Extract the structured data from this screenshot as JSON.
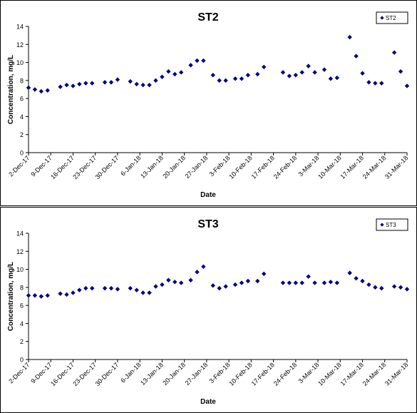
{
  "chart_data": [
    {
      "type": "scatter",
      "title": "ST2",
      "xlabel": "Date",
      "ylabel": "Concentration, mg/L",
      "ylim": [
        0,
        14
      ],
      "yticks": [
        0,
        2,
        4,
        6,
        8,
        10,
        12,
        14
      ],
      "xlim": [
        "2017-12-02",
        "2018-03-31"
      ],
      "xticks": [
        "2-Dec-17",
        "9-Dec-17",
        "16-Dec-17",
        "23-Dec-17",
        "30-Dec-17",
        "6-Jan-18",
        "13-Jan-18",
        "20-Jan-18",
        "27-Jan-18",
        "3-Feb-18",
        "10-Feb-18",
        "17-Feb-18",
        "24-Feb-18",
        "3-Mar-18",
        "10-Mar-18",
        "17-Mar-18",
        "24-Mar-18",
        "31-Mar-18"
      ],
      "legend_position": "top-right",
      "marker_color": "#000080",
      "series": [
        {
          "name": "ST2",
          "points": [
            [
              "2017-12-02",
              7.2
            ],
            [
              "2017-12-04",
              7.0
            ],
            [
              "2017-12-06",
              6.8
            ],
            [
              "2017-12-08",
              6.9
            ],
            [
              "2017-12-12",
              7.3
            ],
            [
              "2017-12-14",
              7.5
            ],
            [
              "2017-12-16",
              7.4
            ],
            [
              "2017-12-18",
              7.6
            ],
            [
              "2017-12-20",
              7.7
            ],
            [
              "2017-12-22",
              7.7
            ],
            [
              "2017-12-26",
              7.8
            ],
            [
              "2017-12-28",
              7.8
            ],
            [
              "2017-12-30",
              8.1
            ],
            [
              "2018-01-03",
              7.9
            ],
            [
              "2018-01-05",
              7.6
            ],
            [
              "2018-01-07",
              7.5
            ],
            [
              "2018-01-09",
              7.5
            ],
            [
              "2018-01-11",
              8.0
            ],
            [
              "2018-01-13",
              8.4
            ],
            [
              "2018-01-15",
              9.0
            ],
            [
              "2018-01-17",
              8.7
            ],
            [
              "2018-01-19",
              8.9
            ],
            [
              "2018-01-22",
              9.7
            ],
            [
              "2018-01-24",
              10.2
            ],
            [
              "2018-01-26",
              10.2
            ],
            [
              "2018-01-29",
              8.6
            ],
            [
              "2018-01-31",
              8.0
            ],
            [
              "2018-02-02",
              8.0
            ],
            [
              "2018-02-05",
              8.2
            ],
            [
              "2018-02-07",
              8.2
            ],
            [
              "2018-02-09",
              8.6
            ],
            [
              "2018-02-12",
              8.7
            ],
            [
              "2018-02-14",
              9.5
            ],
            [
              "2018-02-20",
              8.9
            ],
            [
              "2018-02-22",
              8.5
            ],
            [
              "2018-02-24",
              8.6
            ],
            [
              "2018-02-26",
              8.9
            ],
            [
              "2018-02-28",
              9.6
            ],
            [
              "2018-03-02",
              8.9
            ],
            [
              "2018-03-05",
              9.2
            ],
            [
              "2018-03-07",
              8.2
            ],
            [
              "2018-03-09",
              8.3
            ],
            [
              "2018-03-13",
              12.8
            ],
            [
              "2018-03-15",
              10.7
            ],
            [
              "2018-03-17",
              8.8
            ],
            [
              "2018-03-19",
              7.8
            ],
            [
              "2018-03-21",
              7.7
            ],
            [
              "2018-03-23",
              7.7
            ],
            [
              "2018-03-27",
              11.1
            ],
            [
              "2018-03-29",
              9.0
            ],
            [
              "2018-03-31",
              7.4
            ]
          ]
        }
      ]
    },
    {
      "type": "scatter",
      "title": "ST3",
      "xlabel": "Date",
      "ylabel": "Concentration, mg/L",
      "ylim": [
        0,
        14
      ],
      "yticks": [
        0,
        2,
        4,
        6,
        8,
        10,
        12,
        14
      ],
      "xlim": [
        "2017-12-02",
        "2018-03-31"
      ],
      "xticks": [
        "2-Dec-17",
        "9-Dec-17",
        "16-Dec-17",
        "23-Dec-17",
        "30-Dec-17",
        "6-Jan-18",
        "13-Jan-18",
        "20-Jan-18",
        "27-Jan-18",
        "3-Feb-18",
        "10-Feb-18",
        "17-Feb-18",
        "24-Feb-18",
        "3-Mar-18",
        "10-Mar-18",
        "17-Mar-18",
        "24-Mar-18",
        "31-Mar-18"
      ],
      "legend_position": "top-right",
      "marker_color": "#000080",
      "series": [
        {
          "name": "ST3",
          "points": [
            [
              "2017-12-02",
              7.1
            ],
            [
              "2017-12-04",
              7.1
            ],
            [
              "2017-12-06",
              7.0
            ],
            [
              "2017-12-08",
              7.1
            ],
            [
              "2017-12-12",
              7.3
            ],
            [
              "2017-12-14",
              7.2
            ],
            [
              "2017-12-16",
              7.4
            ],
            [
              "2017-12-18",
              7.7
            ],
            [
              "2017-12-20",
              7.9
            ],
            [
              "2017-12-22",
              7.9
            ],
            [
              "2017-12-26",
              7.9
            ],
            [
              "2017-12-28",
              7.9
            ],
            [
              "2017-12-30",
              7.8
            ],
            [
              "2018-01-03",
              7.9
            ],
            [
              "2018-01-05",
              7.7
            ],
            [
              "2018-01-07",
              7.4
            ],
            [
              "2018-01-09",
              7.4
            ],
            [
              "2018-01-11",
              8.1
            ],
            [
              "2018-01-13",
              8.3
            ],
            [
              "2018-01-15",
              8.8
            ],
            [
              "2018-01-17",
              8.6
            ],
            [
              "2018-01-19",
              8.5
            ],
            [
              "2018-01-22",
              8.8
            ],
            [
              "2018-01-24",
              9.7
            ],
            [
              "2018-01-26",
              10.3
            ],
            [
              "2018-01-29",
              8.2
            ],
            [
              "2018-01-31",
              7.9
            ],
            [
              "2018-02-02",
              8.1
            ],
            [
              "2018-02-05",
              8.3
            ],
            [
              "2018-02-07",
              8.5
            ],
            [
              "2018-02-09",
              8.7
            ],
            [
              "2018-02-12",
              8.7
            ],
            [
              "2018-02-14",
              9.5
            ],
            [
              "2018-02-20",
              8.5
            ],
            [
              "2018-02-22",
              8.5
            ],
            [
              "2018-02-24",
              8.5
            ],
            [
              "2018-02-26",
              8.5
            ],
            [
              "2018-02-28",
              9.2
            ],
            [
              "2018-03-02",
              8.5
            ],
            [
              "2018-03-05",
              8.5
            ],
            [
              "2018-03-07",
              8.6
            ],
            [
              "2018-03-09",
              8.5
            ],
            [
              "2018-03-13",
              9.6
            ],
            [
              "2018-03-15",
              9.0
            ],
            [
              "2018-03-17",
              8.7
            ],
            [
              "2018-03-19",
              8.3
            ],
            [
              "2018-03-21",
              8.0
            ],
            [
              "2018-03-23",
              7.9
            ],
            [
              "2018-03-27",
              8.1
            ],
            [
              "2018-03-29",
              8.0
            ],
            [
              "2018-03-31",
              7.8
            ]
          ]
        }
      ]
    }
  ]
}
